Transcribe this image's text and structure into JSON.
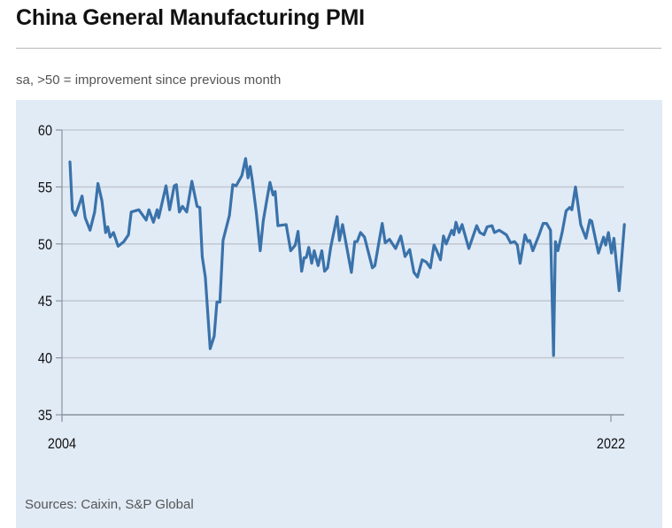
{
  "header": {
    "title": "China General Manufacturing PMI",
    "subtitle": "sa, >50 = improvement since previous month"
  },
  "footer": {
    "source": "Sources: Caixin, S&P Global"
  },
  "colors": {
    "line": "#3a72aa",
    "panel_background": "#e1ebf6",
    "gridline": "#c3c9d2"
  },
  "chart_data": {
    "type": "line",
    "title": "China General Manufacturing PMI",
    "subtitle": "sa, >50 = improvement since previous month",
    "xlabel": "",
    "ylabel": "",
    "xlim": [
      2004,
      2022.45
    ],
    "ylim": [
      35,
      60
    ],
    "grid": true,
    "x_ticks": [
      2004,
      2022
    ],
    "x_tick_labels": [
      "2004",
      "2022"
    ],
    "y_ticks": [
      35,
      40,
      45,
      50,
      55,
      60
    ],
    "y_tick_labels": [
      "35",
      "40",
      "45",
      "50",
      "55",
      "60"
    ],
    "series": [
      {
        "x": [
          2004.26,
          2004.34,
          2004.44,
          2004.66,
          2004.76,
          2004.92,
          2005.07,
          2005.18,
          2005.31,
          2005.43,
          2005.5,
          2005.58,
          2005.69,
          2005.84,
          2006.03,
          2006.18,
          2006.27,
          2006.52,
          2006.76,
          2006.85,
          2007.0,
          2007.12,
          2007.17,
          2007.41,
          2007.53,
          2007.68,
          2007.75,
          2007.85,
          2007.95,
          2008.09,
          2008.26,
          2008.43,
          2008.52,
          2008.6,
          2008.7,
          2008.86,
          2008.99,
          2009.08,
          2009.18,
          2009.28,
          2009.49,
          2009.6,
          2009.71,
          2009.9,
          2010.02,
          2010.1,
          2010.17,
          2010.24,
          2010.37,
          2010.5,
          2010.6,
          2010.7,
          2010.82,
          2010.92,
          2010.99,
          2011.08,
          2011.35,
          2011.5,
          2011.65,
          2011.74,
          2011.86,
          2011.94,
          2012.01,
          2012.09,
          2012.19,
          2012.27,
          2012.4,
          2012.52,
          2012.61,
          2012.71,
          2012.81,
          2013.02,
          2013.1,
          2013.2,
          2013.49,
          2013.6,
          2013.68,
          2013.79,
          2013.92,
          2014.18,
          2014.26,
          2014.5,
          2014.6,
          2014.74,
          2014.94,
          2015.11,
          2015.25,
          2015.4,
          2015.54,
          2015.66,
          2015.81,
          2015.95,
          2016.08,
          2016.2,
          2016.29,
          2016.41,
          2016.51,
          2016.6,
          2016.78,
          2016.85,
          2016.92,
          2017.02,
          2017.12,
          2017.34,
          2017.6,
          2017.7,
          2017.84,
          2017.94,
          2018.1,
          2018.18,
          2018.34,
          2018.57,
          2018.71,
          2018.84,
          2018.93,
          2019.02,
          2019.18,
          2019.27,
          2019.34,
          2019.44,
          2019.63,
          2019.78,
          2019.89,
          2020.02,
          2020.12,
          2020.18,
          2020.26,
          2020.4,
          2020.53,
          2020.65,
          2020.72,
          2020.84,
          2021.01,
          2021.18,
          2021.31,
          2021.37,
          2021.59,
          2021.76,
          2021.83,
          2021.92,
          2022.02,
          2022.1,
          2022.27,
          2022.44
        ],
        "values": [
          57.2,
          53.0,
          52.5,
          54.2,
          52.3,
          51.2,
          52.8,
          55.3,
          53.8,
          51.0,
          51.5,
          50.6,
          51.0,
          49.8,
          50.2,
          50.8,
          52.8,
          53.0,
          52.1,
          53.0,
          51.9,
          53.0,
          52.3,
          55.1,
          53.0,
          55.1,
          55.2,
          52.8,
          53.3,
          52.8,
          55.5,
          53.3,
          53.2,
          48.9,
          47.1,
          40.8,
          41.9,
          44.9,
          44.9,
          50.3,
          52.5,
          55.2,
          55.1,
          56.0,
          57.5,
          55.8,
          56.8,
          55.6,
          52.8,
          49.4,
          52.0,
          53.6,
          55.4,
          54.3,
          54.6,
          51.6,
          51.7,
          49.4,
          49.9,
          51.1,
          47.6,
          48.8,
          48.8,
          49.7,
          48.3,
          49.4,
          48.1,
          49.4,
          47.6,
          47.9,
          49.7,
          52.4,
          50.3,
          51.7,
          47.5,
          50.2,
          50.2,
          51.0,
          50.6,
          47.9,
          48.1,
          51.8,
          50.1,
          50.4,
          49.6,
          50.7,
          48.9,
          49.5,
          47.5,
          47.1,
          48.6,
          48.4,
          47.9,
          49.9,
          49.4,
          48.6,
          50.7,
          50.0,
          51.2,
          50.8,
          51.9,
          51.0,
          51.7,
          49.6,
          51.6,
          51.0,
          50.8,
          51.5,
          51.6,
          51.0,
          51.2,
          50.8,
          50.1,
          50.2,
          49.9,
          48.3,
          50.8,
          50.2,
          50.3,
          49.4,
          50.7,
          51.8,
          51.8,
          51.2,
          40.2,
          50.2,
          49.4,
          51.0,
          52.9,
          53.2,
          53.0,
          55.0,
          51.7,
          50.5,
          52.1,
          52.0,
          49.2,
          50.6,
          49.9,
          51.0,
          49.2,
          50.5,
          45.9,
          51.7
        ]
      }
    ]
  }
}
